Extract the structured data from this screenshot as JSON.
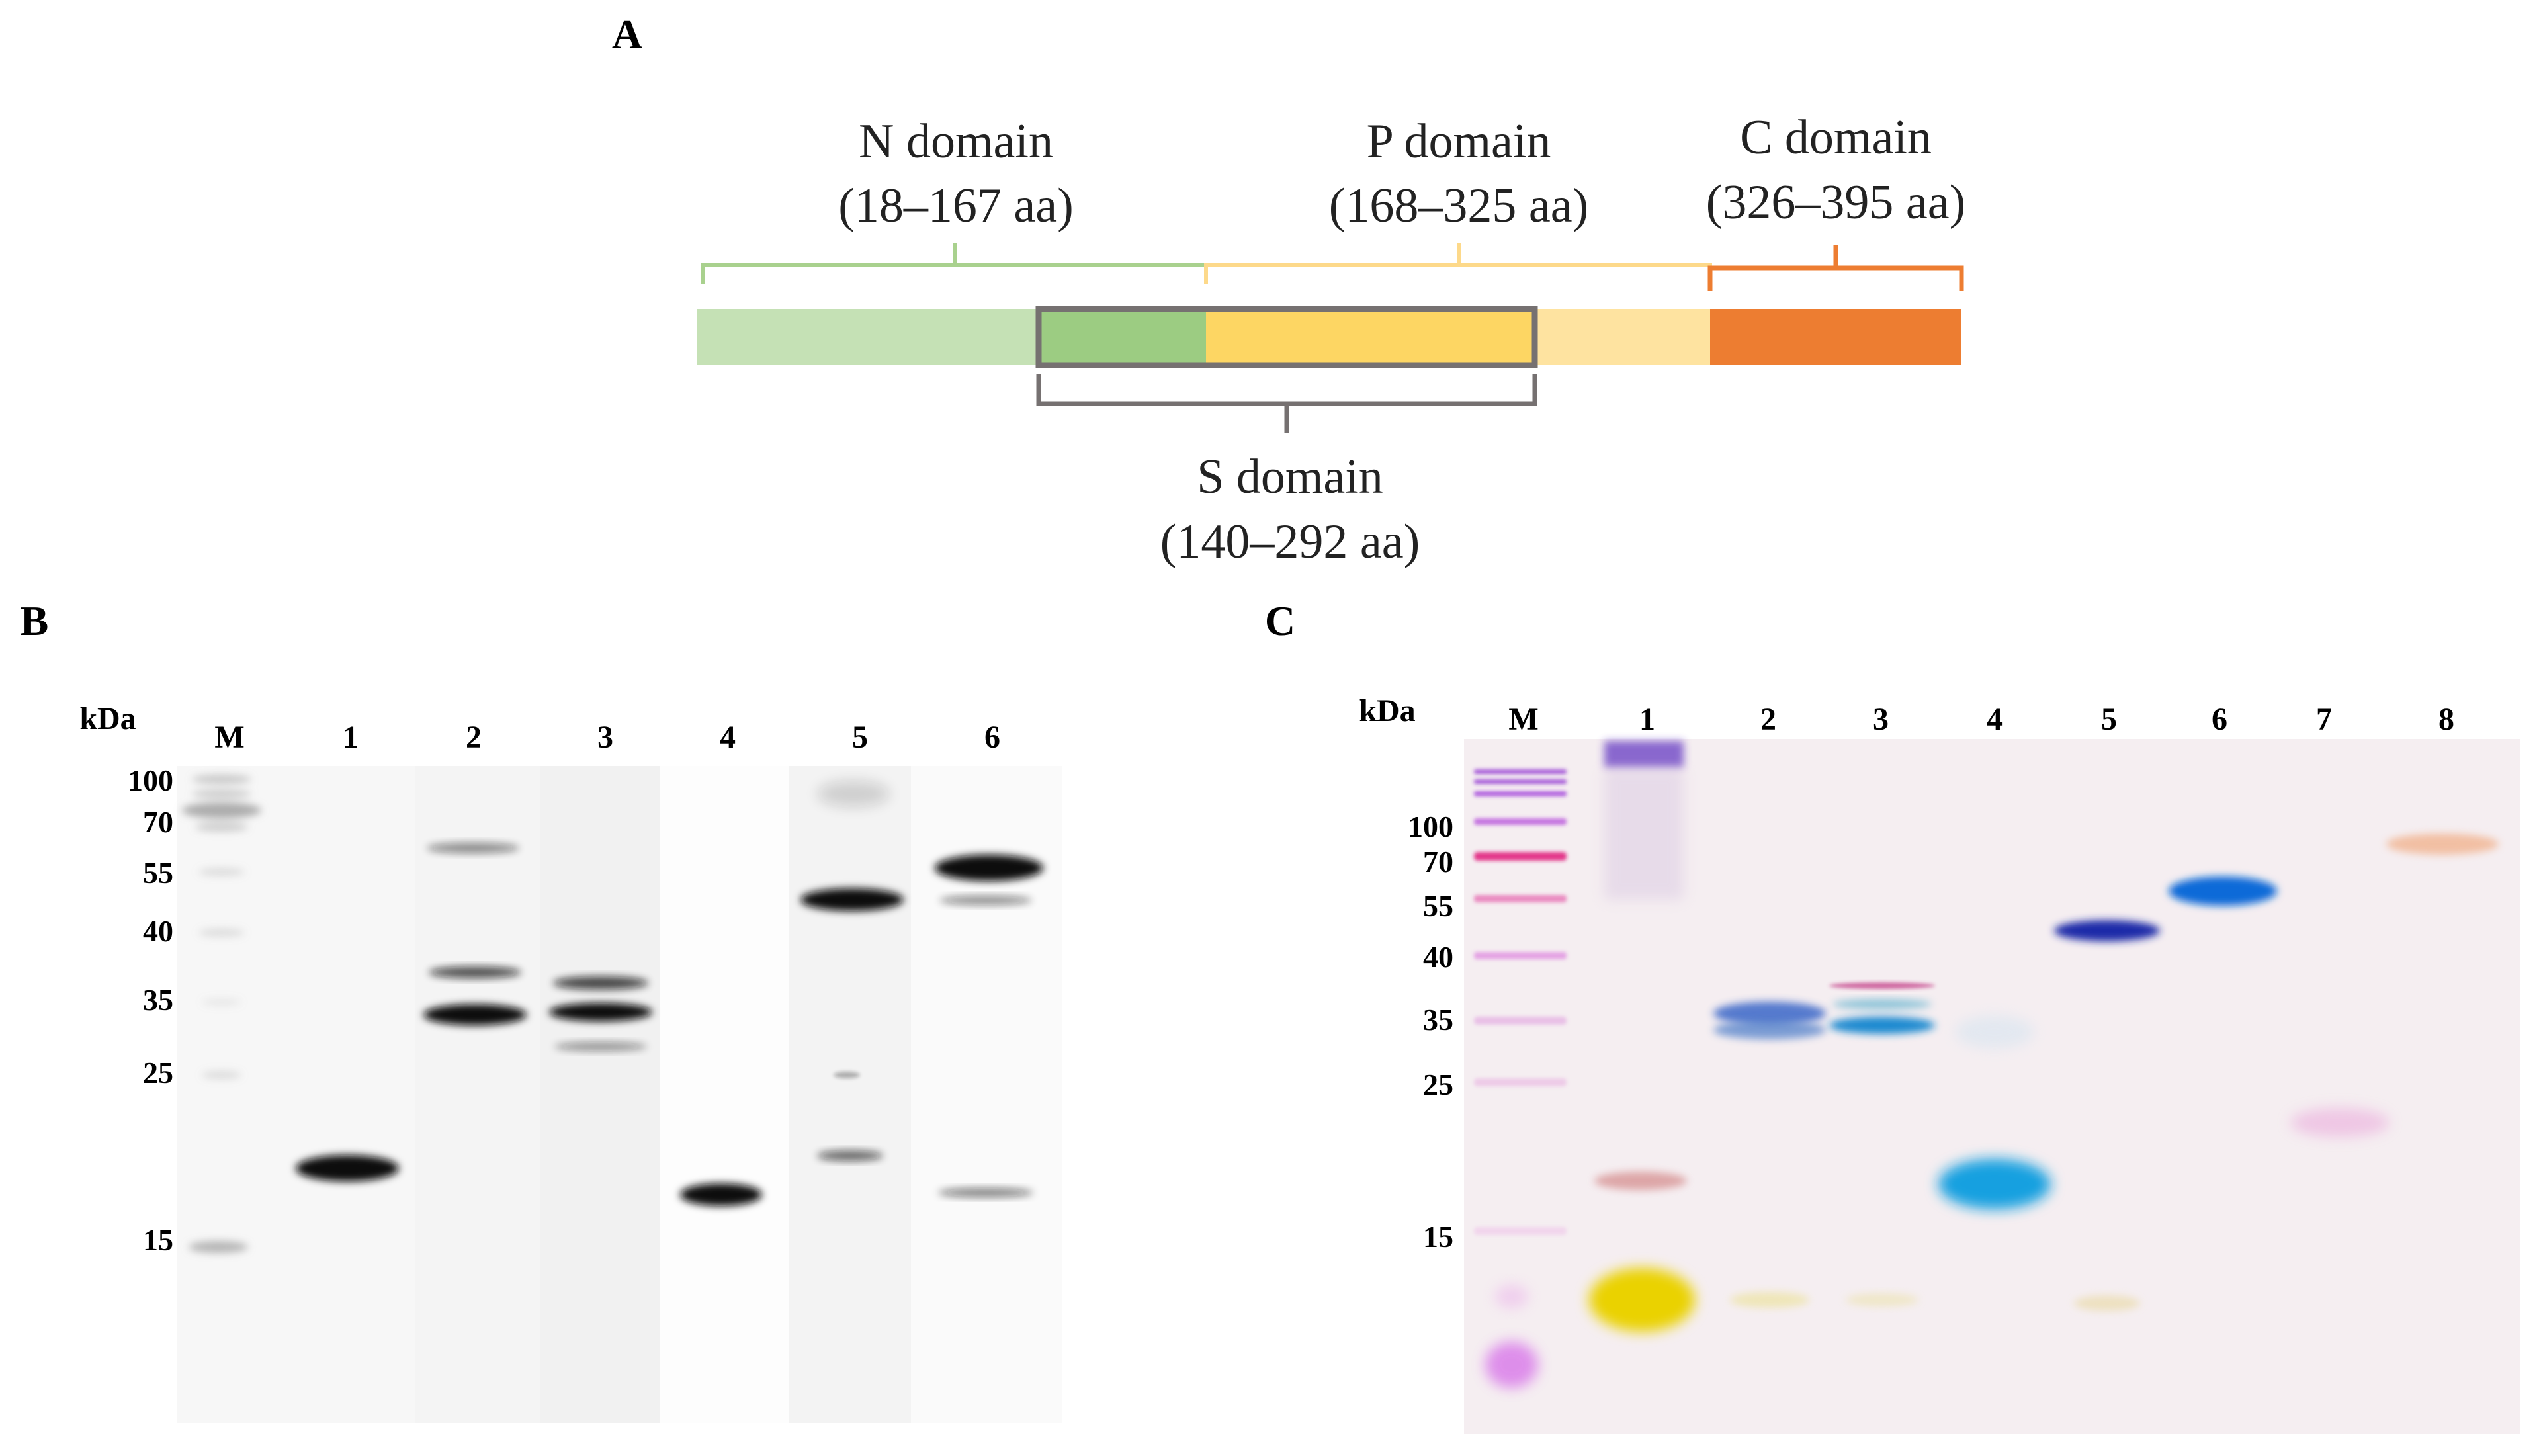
{
  "panel_a": {
    "label": "A",
    "n_domain": {
      "name": "N domain",
      "range": "(18–167 aa)",
      "color_light": "#c5e1b5",
      "color_dark": "#9ccc82",
      "bracket_color": "#a9d18e"
    },
    "p_domain": {
      "name": "P domain",
      "range": "(168–325 aa)",
      "color_light": "#fee3a0",
      "color_dark": "#fdd663",
      "bracket_color": "#fdd98a"
    },
    "c_domain": {
      "name": "C domain",
      "range": "(326–395 aa)",
      "color": "#ed7d31"
    },
    "s_domain": {
      "name": "S domain",
      "range": "(140–292 aa)",
      "color": "#767171"
    }
  },
  "panel_b": {
    "label": "B",
    "unit": "kDa",
    "lanes": [
      "M",
      "1",
      "2",
      "3",
      "4",
      "5",
      "6"
    ],
    "markers": [
      "100",
      "70",
      "55",
      "40",
      "35",
      "25",
      "15"
    ]
  },
  "panel_c": {
    "label": "C",
    "unit": "kDa",
    "lanes": [
      "M",
      "1",
      "2",
      "3",
      "4",
      "5",
      "6",
      "7",
      "8"
    ],
    "markers": [
      "100",
      "70",
      "55",
      "40",
      "35",
      "25",
      "15"
    ]
  }
}
